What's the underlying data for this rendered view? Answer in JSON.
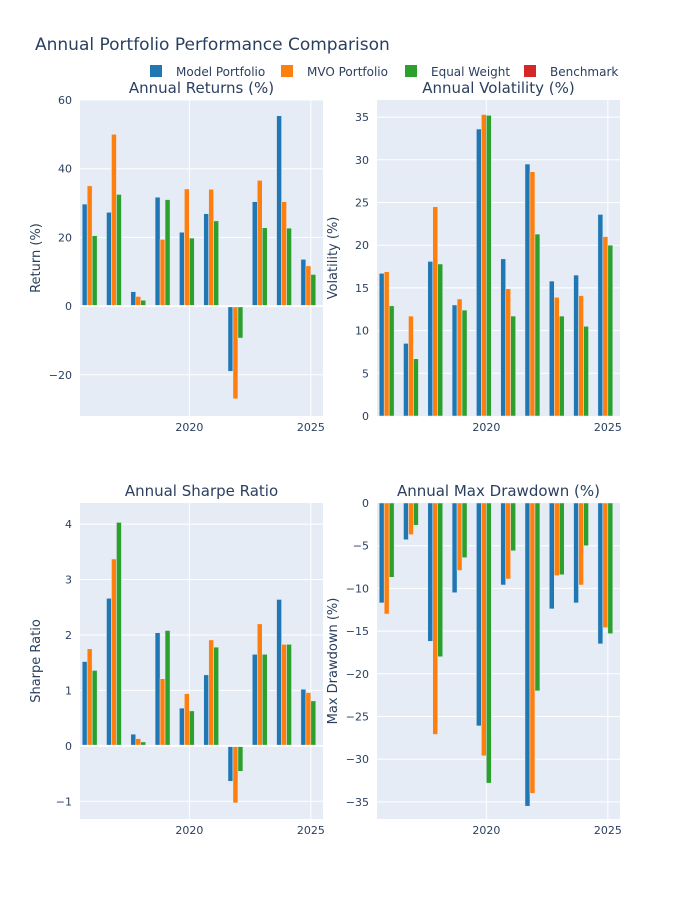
{
  "title": "Annual Portfolio Performance Comparison",
  "legend": [
    {
      "name": "Model Portfolio",
      "color": "#1f77b4"
    },
    {
      "name": "MVO Portfolio",
      "color": "#ff7f0e"
    },
    {
      "name": "Equal Weight",
      "color": "#2ca02c"
    },
    {
      "name": "Benchmark",
      "color": "#d62728"
    }
  ],
  "chart_data": [
    {
      "type": "bar",
      "title": "Annual Returns (%)",
      "xlabel": "",
      "ylabel": "Return (%)",
      "x": [
        2016,
        2017,
        2018,
        2019,
        2020,
        2021,
        2022,
        2023,
        2024,
        2025
      ],
      "xticks": [
        2020,
        2025
      ],
      "xlim": [
        2015.5,
        2025.5
      ],
      "ylim": [
        -32,
        60
      ],
      "yticks": [
        -20,
        0,
        20,
        40,
        60
      ],
      "series": [
        {
          "name": "Model Portfolio",
          "values": [
            29.7,
            27.3,
            4.2,
            31.7,
            21.5,
            26.9,
            -19.0,
            30.4,
            55.4,
            13.6
          ]
        },
        {
          "name": "MVO Portfolio",
          "values": [
            35.0,
            50.0,
            2.8,
            19.4,
            34.1,
            34.0,
            -27.0,
            36.6,
            30.4,
            11.7
          ]
        },
        {
          "name": "Equal Weight",
          "values": [
            20.5,
            32.5,
            1.7,
            31.0,
            19.8,
            24.8,
            -9.3,
            22.8,
            22.7,
            9.2
          ]
        },
        {
          "name": "Benchmark",
          "values": [
            0,
            0,
            0,
            0,
            0,
            0,
            0,
            0,
            0,
            0
          ]
        }
      ]
    },
    {
      "type": "bar",
      "title": "Annual Volatility (%)",
      "xlabel": "",
      "ylabel": "Volatility (%)",
      "x": [
        2016,
        2017,
        2018,
        2019,
        2020,
        2021,
        2022,
        2023,
        2024,
        2025
      ],
      "xticks": [
        2020,
        2025
      ],
      "xlim": [
        2015.5,
        2025.5
      ],
      "ylim": [
        0,
        37
      ],
      "yticks": [
        0,
        5,
        10,
        15,
        20,
        25,
        30,
        35
      ],
      "series": [
        {
          "name": "Model Portfolio",
          "values": [
            16.7,
            8.5,
            18.1,
            13.0,
            33.6,
            18.4,
            29.5,
            15.8,
            16.5,
            23.6
          ]
        },
        {
          "name": "MVO Portfolio",
          "values": [
            16.9,
            11.7,
            24.5,
            13.7,
            35.3,
            14.9,
            28.6,
            13.9,
            14.1,
            21.0
          ]
        },
        {
          "name": "Equal Weight",
          "values": [
            12.9,
            6.7,
            17.8,
            12.4,
            35.2,
            11.7,
            21.3,
            11.7,
            10.5,
            20.0
          ]
        },
        {
          "name": "Benchmark",
          "values": [
            0,
            0,
            0,
            0,
            0,
            0,
            0,
            0,
            0,
            0
          ]
        }
      ]
    },
    {
      "type": "bar",
      "title": "Annual Sharpe Ratio",
      "xlabel": "",
      "ylabel": "Sharpe Ratio",
      "x": [
        2016,
        2017,
        2018,
        2019,
        2020,
        2021,
        2022,
        2023,
        2024,
        2025
      ],
      "xticks": [
        2020,
        2025
      ],
      "xlim": [
        2015.5,
        2025.5
      ],
      "ylim": [
        -1.32,
        4.38
      ],
      "yticks": [
        -1,
        0,
        1,
        2,
        3,
        4
      ],
      "series": [
        {
          "name": "Model Portfolio",
          "values": [
            1.52,
            2.66,
            0.21,
            2.04,
            0.68,
            1.28,
            -0.64,
            1.65,
            2.64,
            1.02
          ]
        },
        {
          "name": "MVO Portfolio",
          "values": [
            1.75,
            3.37,
            0.13,
            1.21,
            0.94,
            1.91,
            -1.03,
            2.2,
            1.83,
            0.96
          ]
        },
        {
          "name": "Equal Weight",
          "values": [
            1.36,
            4.03,
            0.07,
            2.08,
            0.63,
            1.78,
            -0.46,
            1.65,
            1.83,
            0.81
          ]
        },
        {
          "name": "Benchmark",
          "values": [
            0,
            0,
            0,
            0,
            0,
            0,
            0,
            0,
            0,
            0
          ]
        }
      ]
    },
    {
      "type": "bar",
      "title": "Annual Max Drawdown (%)",
      "xlabel": "",
      "ylabel": "Max Drawdown (%)",
      "x": [
        2016,
        2017,
        2018,
        2019,
        2020,
        2021,
        2022,
        2023,
        2024,
        2025
      ],
      "xticks": [
        2020,
        2025
      ],
      "xlim": [
        2015.5,
        2025.5
      ],
      "ylim": [
        -37.0,
        0
      ],
      "yticks": [
        -35,
        -30,
        -25,
        -20,
        -15,
        -10,
        -5,
        0
      ],
      "series": [
        {
          "name": "Model Portfolio",
          "values": [
            -11.7,
            -4.3,
            -16.2,
            -10.5,
            -26.1,
            -9.6,
            -35.5,
            -12.4,
            -11.7,
            -16.5
          ]
        },
        {
          "name": "MVO Portfolio",
          "values": [
            -13.0,
            -3.7,
            -27.1,
            -7.9,
            -29.6,
            -8.9,
            -34.0,
            -8.5,
            -9.6,
            -14.6
          ]
        },
        {
          "name": "Equal Weight",
          "values": [
            -8.7,
            -2.6,
            -18.0,
            -6.4,
            -32.8,
            -5.6,
            -22.0,
            -8.4,
            -5.0,
            -15.3
          ]
        },
        {
          "name": "Benchmark",
          "values": [
            0,
            0,
            0,
            0,
            0,
            0,
            0,
            0,
            0,
            0
          ]
        }
      ]
    }
  ]
}
